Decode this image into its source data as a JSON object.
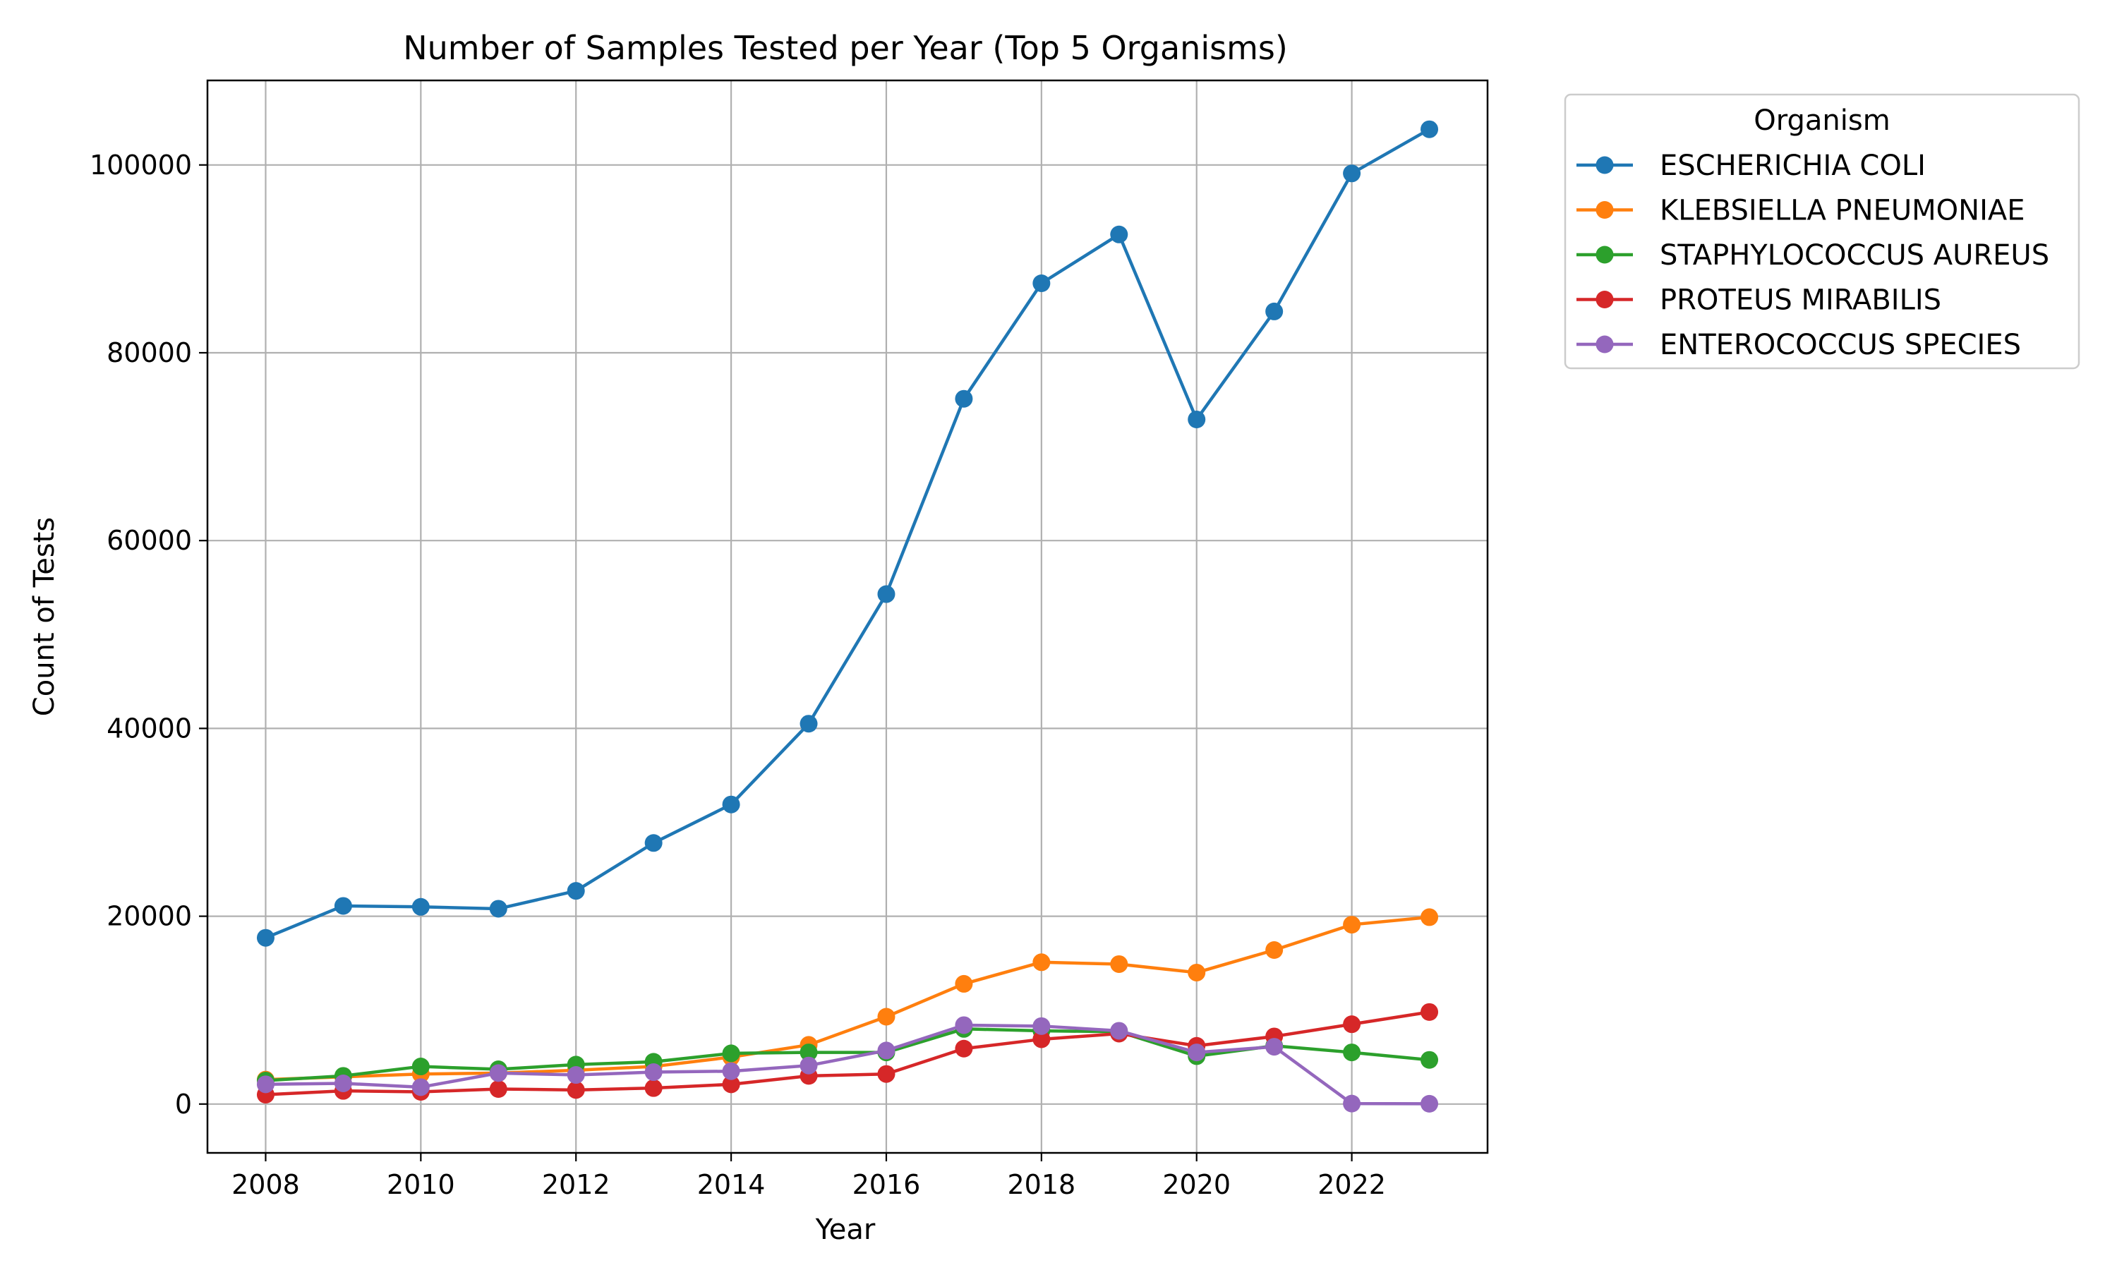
{
  "chart_data": {
    "type": "line",
    "title": "Number of Samples Tested per Year (Top 5 Organisms)",
    "xlabel": "Year",
    "ylabel": "Count of Tests",
    "x": [
      2008,
      2009,
      2010,
      2011,
      2012,
      2013,
      2014,
      2015,
      2016,
      2017,
      2018,
      2019,
      2020,
      2021,
      2022,
      2023
    ],
    "xlim": [
      2007.25,
      2023.75
    ],
    "ylim": [
      -5200,
      109000
    ],
    "xticks": [
      2008,
      2010,
      2012,
      2014,
      2016,
      2018,
      2020,
      2022
    ],
    "yticks": [
      0,
      20000,
      40000,
      60000,
      80000,
      100000
    ],
    "grid": true,
    "legend": {
      "title": "Organism",
      "placement": "outside-top-right"
    },
    "series": [
      {
        "name": "ESCHERICHIA COLI",
        "color": "#1f77b4",
        "values": [
          17700,
          21100,
          21000,
          20800,
          22700,
          27800,
          31900,
          40500,
          54300,
          75100,
          87400,
          92600,
          72900,
          84400,
          99100,
          103800
        ]
      },
      {
        "name": "KLEBSIELLA PNEUMONIAE",
        "color": "#ff7f0e",
        "values": [
          2600,
          2900,
          3200,
          3300,
          3600,
          4000,
          5000,
          6300,
          9300,
          12800,
          15100,
          14900,
          14000,
          16400,
          19100,
          19900
        ]
      },
      {
        "name": "STAPHYLOCOCCUS AUREUS",
        "color": "#2ca02c",
        "values": [
          2500,
          3000,
          4000,
          3700,
          4200,
          4500,
          5400,
          5500,
          5500,
          8000,
          7800,
          7700,
          5100,
          6200,
          5500,
          4700
        ]
      },
      {
        "name": "PROTEUS MIRABILIS",
        "color": "#d62728",
        "values": [
          1000,
          1400,
          1300,
          1600,
          1500,
          1700,
          2100,
          3000,
          3200,
          5900,
          6900,
          7500,
          6200,
          7200,
          8500,
          9800
        ]
      },
      {
        "name": "ENTEROCOCCUS SPECIES",
        "color": "#9467bd",
        "values": [
          2100,
          2200,
          1800,
          3300,
          3100,
          3400,
          3500,
          4100,
          5700,
          8400,
          8300,
          7800,
          5500,
          6100,
          50,
          30
        ]
      }
    ]
  }
}
